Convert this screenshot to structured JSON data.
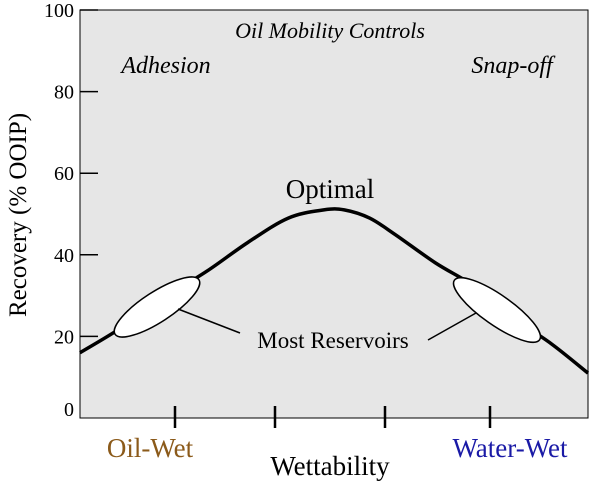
{
  "chart_data": {
    "type": "line",
    "ylabel": "Recovery (% OOIP)",
    "xlabel": "Wettability",
    "xlabel_left": "Oil-Wet",
    "xlabel_right": "Water-Wet",
    "ylim": [
      0,
      100
    ],
    "yticks": [
      0,
      20,
      40,
      60,
      80,
      100
    ],
    "xlim": [
      0,
      1
    ],
    "grid": false,
    "series": [
      {
        "x": [
          0.0,
          0.08,
          0.16,
          0.25,
          0.33,
          0.41,
          0.48,
          0.52,
          0.57,
          0.62,
          0.7,
          0.78,
          0.86,
          0.93,
          1.0
        ],
        "y": [
          16,
          22,
          29,
          36,
          43,
          49,
          51,
          51,
          49,
          45,
          38,
          32,
          24,
          18,
          11
        ]
      }
    ],
    "annotations": {
      "top_center": "Oil Mobility Controls",
      "top_left": "Adhesion",
      "top_right": "Snap-off",
      "peak": "Optimal",
      "ellipses": "Most Reservoirs"
    }
  },
  "colors": {
    "plot_bg": "#e6e6e6",
    "line": "#000000",
    "oil_wet": "#8b5a1a",
    "water_wet": "#1a1aa6"
  }
}
